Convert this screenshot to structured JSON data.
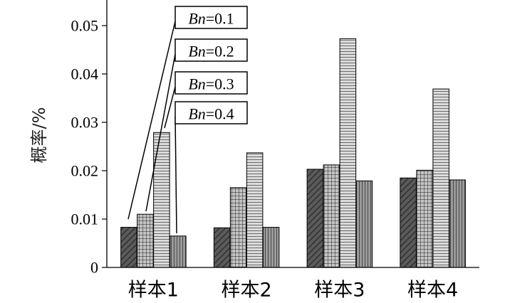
{
  "chart_data": {
    "type": "bar",
    "title": "",
    "xlabel": "",
    "ylabel": "概率/%",
    "ylim": [
      0,
      0.055
    ],
    "yticks": [
      "0",
      "0.01",
      "0.02",
      "0.03",
      "0.04",
      "0.05"
    ],
    "categories": [
      "样本1",
      "样本2",
      "样本3",
      "样本4"
    ],
    "legend_placement": "top-center",
    "series": [
      {
        "name": "Bn=0.1",
        "name_var": "Bn",
        "name_value": "=0.1",
        "pattern": "diagonal-hatch",
        "fill": "#5a5a5a",
        "values": [
          0.0083,
          0.0082,
          0.0203,
          0.0185
        ]
      },
      {
        "name": "Bn=0.2",
        "name_var": "Bn",
        "name_value": "=0.2",
        "pattern": "grid",
        "fill": "#bfbfbf",
        "values": [
          0.011,
          0.0165,
          0.0212,
          0.0201
        ]
      },
      {
        "name": "Bn=0.3",
        "name_var": "Bn",
        "name_value": "=0.3",
        "pattern": "horizontal-lines",
        "fill": "#d6d6d6",
        "values": [
          0.0279,
          0.0237,
          0.0473,
          0.0369
        ]
      },
      {
        "name": "Bn=0.4",
        "name_var": "Bn",
        "name_value": "=0.4",
        "pattern": "vertical-lines",
        "fill": "#909090",
        "values": [
          0.0065,
          0.0083,
          0.0179,
          0.0181
        ]
      }
    ]
  }
}
